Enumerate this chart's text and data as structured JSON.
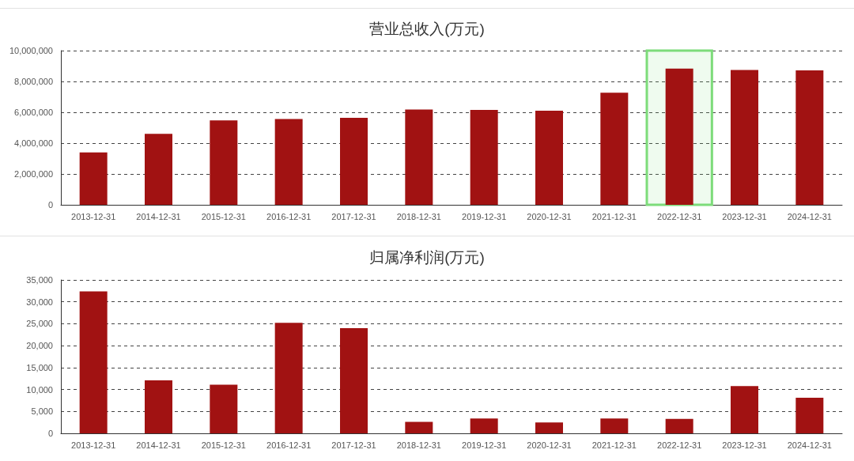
{
  "chart_data": [
    {
      "type": "bar",
      "title": "营业总收入(万元)",
      "categories": [
        "2013-12-31",
        "2014-12-31",
        "2015-12-31",
        "2016-12-31",
        "2017-12-31",
        "2018-12-31",
        "2019-12-31",
        "2020-12-31",
        "2021-12-31",
        "2022-12-31",
        "2023-12-31",
        "2024-12-31"
      ],
      "values": [
        3400000,
        4600000,
        5470000,
        5570000,
        5640000,
        6180000,
        6150000,
        6100000,
        7270000,
        8830000,
        8740000,
        8720000
      ],
      "color": "#a11212",
      "ylim": [
        0,
        10000000
      ],
      "yticks": [
        {
          "value": 0,
          "label": "0"
        },
        {
          "value": 2000000,
          "label": "2,000,000"
        },
        {
          "value": 4000000,
          "label": "4,000,000"
        },
        {
          "value": 6000000,
          "label": "6,000,000"
        },
        {
          "value": 8000000,
          "label": "8,000,000"
        },
        {
          "value": 10000000,
          "label": "10,000,000"
        }
      ],
      "grid": "y",
      "bands": [
        {
          "axis": "x",
          "from": "2022-12-31",
          "to": "2022-12-31",
          "color": "#7ddc7a"
        }
      ]
    },
    {
      "type": "bar",
      "title": "归属净利润(万元)",
      "categories": [
        "2013-12-31",
        "2014-12-31",
        "2015-12-31",
        "2016-12-31",
        "2017-12-31",
        "2018-12-31",
        "2019-12-31",
        "2020-12-31",
        "2021-12-31",
        "2022-12-31",
        "2023-12-31",
        "2024-12-31"
      ],
      "values": [
        32400,
        12100,
        11100,
        25200,
        24000,
        2600,
        3400,
        2500,
        3400,
        3300,
        10800,
        8100
      ],
      "color": "#a11212",
      "ylim": [
        0,
        35000
      ],
      "yticks": [
        {
          "value": 0,
          "label": "0"
        },
        {
          "value": 5000,
          "label": "5,000"
        },
        {
          "value": 10000,
          "label": "10,000"
        },
        {
          "value": 15000,
          "label": "15,000"
        },
        {
          "value": 20000,
          "label": "20,000"
        },
        {
          "value": 25000,
          "label": "25,000"
        },
        {
          "value": 30000,
          "label": "30,000"
        },
        {
          "value": 35000,
          "label": "35,000"
        }
      ],
      "grid": "y"
    }
  ]
}
